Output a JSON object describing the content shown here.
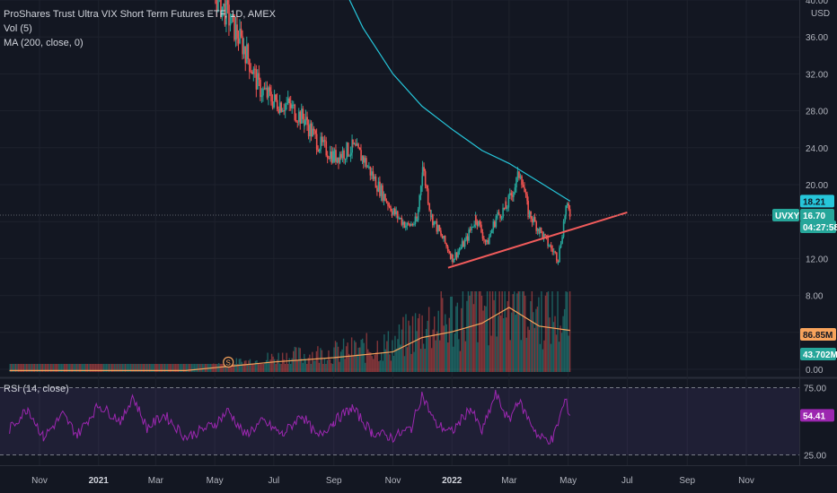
{
  "legend": {
    "title": "ProShares Trust Ultra VIX Short Term Futures ETF, 1D, AMEX",
    "vol": "Vol (5)",
    "ma": "MA (200, close, 0)",
    "rsi": "RSI (14, close)"
  },
  "currency": "USD",
  "symbol": "UVXY",
  "countdown": "04:27:58",
  "event_marker": "S",
  "colors": {
    "up": "#26a69a",
    "down": "#ef5350",
    "ma": "#26c6da",
    "trendline": "#f15b5b",
    "volume_ma": "#f7a35c",
    "rsi": "#9c27b0",
    "rsi_band": "#7e57c2"
  },
  "chart_data": [
    {
      "type": "candlestick",
      "name": "price",
      "y_ticks": [
        "40.00",
        "36.00",
        "32.00",
        "28.00",
        "24.00",
        "20.00",
        "16.00",
        "12.00",
        "8.00",
        "4.00",
        "0.00"
      ],
      "ylim": [
        0,
        40
      ],
      "x_ticks": [
        "Nov",
        "2021",
        "Mar",
        "May",
        "Jul",
        "Sep",
        "Nov",
        "2022",
        "Mar",
        "May",
        "Jul",
        "Sep",
        "Nov"
      ],
      "x_tick_dates": [
        "2020-11",
        "2021-01",
        "2021-03",
        "2021-05",
        "2021-07",
        "2021-09",
        "2021-11",
        "2022-01",
        "2022-03",
        "2022-05",
        "2022-07",
        "2022-09",
        "2022-11"
      ],
      "close_series": [
        [
          "2021-05-01",
          40.5
        ],
        [
          "2021-05-15",
          38.0
        ],
        [
          "2021-06-01",
          34.5
        ],
        [
          "2021-06-15",
          30.5
        ],
        [
          "2021-07-01",
          29.0
        ],
        [
          "2021-07-15",
          28.6
        ],
        [
          "2021-08-01",
          27.0
        ],
        [
          "2021-08-15",
          24.5
        ],
        [
          "2021-09-01",
          23.0
        ],
        [
          "2021-09-20",
          24.0
        ],
        [
          "2021-10-01",
          22.8
        ],
        [
          "2021-10-15",
          20.0
        ],
        [
          "2021-11-01",
          17.0
        ],
        [
          "2021-11-15",
          15.5
        ],
        [
          "2021-11-25",
          16.0
        ],
        [
          "2021-12-01",
          22.0
        ],
        [
          "2021-12-10",
          16.5
        ],
        [
          "2021-12-20",
          14.5
        ],
        [
          "2022-01-01",
          12.0
        ],
        [
          "2022-01-15",
          14.0
        ],
        [
          "2022-01-25",
          16.5
        ],
        [
          "2022-02-05",
          13.5
        ],
        [
          "2022-02-15",
          16.5
        ],
        [
          "2022-02-25",
          17.5
        ],
        [
          "2022-03-05",
          19.5
        ],
        [
          "2022-03-12",
          21.5
        ],
        [
          "2022-03-20",
          17.0
        ],
        [
          "2022-04-01",
          15.0
        ],
        [
          "2022-04-10",
          13.5
        ],
        [
          "2022-04-20",
          12.0
        ],
        [
          "2022-04-28",
          17.5
        ],
        [
          "2022-05-03",
          16.7
        ]
      ],
      "last_price_labels": [
        "18.21",
        "16.70"
      ]
    },
    {
      "type": "line",
      "name": "MA (200, close, 0)",
      "x": [
        "2021-09-15",
        "2021-10-01",
        "2021-11-01",
        "2021-12-01",
        "2022-01-01",
        "2022-02-01",
        "2022-03-01",
        "2022-04-01",
        "2022-05-03"
      ],
      "y": [
        40.5,
        37.0,
        32.0,
        28.5,
        26.0,
        23.7,
        22.3,
        20.3,
        18.21
      ]
    },
    {
      "type": "line",
      "name": "trendline",
      "x": [
        "2021-12-28",
        "2022-07-01"
      ],
      "y": [
        11.0,
        17.0
      ]
    },
    {
      "type": "bar",
      "name": "Vol (5)",
      "labels": [
        "86.85M",
        "43.702M"
      ],
      "volume_ma_series": [
        [
          "2020-10-01",
          0.1
        ],
        [
          "2021-01-01",
          0.1
        ],
        [
          "2021-04-01",
          0.1
        ],
        [
          "2021-05-01",
          0.3
        ],
        [
          "2021-07-01",
          0.7
        ],
        [
          "2021-09-01",
          1.0
        ],
        [
          "2021-11-01",
          1.4
        ],
        [
          "2021-12-01",
          2.4
        ],
        [
          "2022-01-01",
          2.8
        ],
        [
          "2022-02-01",
          3.4
        ],
        [
          "2022-03-01",
          4.5
        ],
        [
          "2022-04-01",
          3.2
        ],
        [
          "2022-05-03",
          2.9
        ]
      ]
    },
    {
      "type": "line",
      "name": "RSI (14, close)",
      "y_ticks": [
        "75.00",
        "25.00"
      ],
      "band": [
        25,
        75
      ],
      "ylim": [
        18,
        82
      ],
      "current": "54.41",
      "series": [
        [
          "2020-10-01",
          44
        ],
        [
          "2020-10-20",
          60
        ],
        [
          "2020-11-05",
          38
        ],
        [
          "2020-11-25",
          55
        ],
        [
          "2020-12-10",
          40
        ],
        [
          "2021-01-01",
          62
        ],
        [
          "2021-01-25",
          50
        ],
        [
          "2021-02-05",
          69
        ],
        [
          "2021-02-20",
          45
        ],
        [
          "2021-03-10",
          55
        ],
        [
          "2021-04-01",
          38
        ],
        [
          "2021-05-01",
          48
        ],
        [
          "2021-05-15",
          58
        ],
        [
          "2021-06-01",
          40
        ],
        [
          "2021-06-20",
          50
        ],
        [
          "2021-07-10",
          40
        ],
        [
          "2021-07-30",
          55
        ],
        [
          "2021-08-15",
          38
        ],
        [
          "2021-09-01",
          50
        ],
        [
          "2021-09-20",
          60
        ],
        [
          "2021-10-10",
          42
        ],
        [
          "2021-11-01",
          38
        ],
        [
          "2021-11-20",
          45
        ],
        [
          "2021-12-01",
          70
        ],
        [
          "2021-12-15",
          48
        ],
        [
          "2022-01-01",
          42
        ],
        [
          "2022-01-20",
          60
        ],
        [
          "2022-02-01",
          42
        ],
        [
          "2022-02-15",
          70
        ],
        [
          "2022-03-01",
          50
        ],
        [
          "2022-03-10",
          66
        ],
        [
          "2022-04-01",
          38
        ],
        [
          "2022-04-15",
          36
        ],
        [
          "2022-04-28",
          66
        ],
        [
          "2022-05-03",
          54.41
        ]
      ]
    }
  ]
}
